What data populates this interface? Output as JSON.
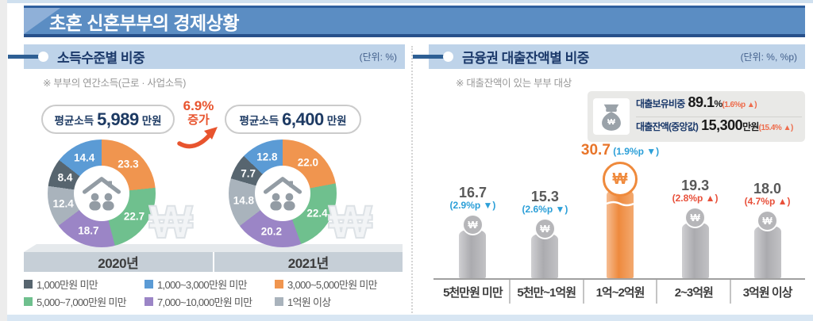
{
  "banner": {
    "title": "초혼 신혼부부의 경제상황"
  },
  "income_panel": {
    "title": "소득수준별 비중",
    "unit": "(단위: %)",
    "note": "※ 부부의  연간소득(근로 · 사업소득)",
    "increase": {
      "percent": "6.9%",
      "label": "증가"
    },
    "groups": [
      {
        "year": "2020년",
        "avg_prefix": "평균소득",
        "avg_value": "5,989",
        "avg_unit": "만원"
      },
      {
        "year": "2021년",
        "avg_prefix": "평균소득",
        "avg_value": "6,400",
        "avg_unit": "만원"
      }
    ],
    "legend": [
      {
        "label": "1,000만원 미만",
        "color": "#57656f"
      },
      {
        "label": "1,000~3,000만원 미만",
        "color": "#5b9bd5"
      },
      {
        "label": "3,000~5,000만원 미만",
        "color": "#f0954f"
      },
      {
        "label": "5,000~7,000만원 미만",
        "color": "#6fc08e"
      },
      {
        "label": "7,000~10,000만원 미만",
        "color": "#9b85c6"
      },
      {
        "label": "1억원 이상",
        "color": "#a9b3bc"
      }
    ]
  },
  "loan_panel": {
    "title": "금융권 대출잔액별 비중",
    "unit": "(단위: %, %p)",
    "note": "※ 대출잔액이 있는 부부 대상",
    "summary": [
      {
        "label": "대출보유비중",
        "value": "89.1",
        "value_unit": "%",
        "change": "(1.6%p ▲)"
      },
      {
        "label": "대출잔액(중앙값)",
        "value": "15,300",
        "value_unit": "만원",
        "change": "(15.4% ▲)"
      }
    ]
  },
  "chart_data": [
    {
      "type": "pie",
      "title": "소득수준별 비중 2020년",
      "unit": "%",
      "segments": [
        {
          "label": "3,000~5,000만원 미만",
          "value": 23.3,
          "color": "#f0954f"
        },
        {
          "label": "5,000~7,000만원 미만",
          "value": 22.7,
          "color": "#6fc08e"
        },
        {
          "label": "7,000~10,000만원 미만",
          "value": 18.7,
          "color": "#9b85c6"
        },
        {
          "label": "1억원 이상",
          "value": 12.4,
          "color": "#a9b3bc"
        },
        {
          "label": "1,000만원 미만",
          "value": 8.4,
          "color": "#57656f"
        },
        {
          "label": "1,000~3,000만원 미만",
          "value": 14.4,
          "color": "#5b9bd5"
        }
      ]
    },
    {
      "type": "pie",
      "title": "소득수준별 비중 2021년",
      "unit": "%",
      "segments": [
        {
          "label": "3,000~5,000만원 미만",
          "value": 22.0,
          "color": "#f0954f"
        },
        {
          "label": "5,000~7,000만원 미만",
          "value": 22.4,
          "color": "#6fc08e"
        },
        {
          "label": "7,000~10,000만원 미만",
          "value": 20.2,
          "color": "#9b85c6"
        },
        {
          "label": "1억원 이상",
          "value": 14.8,
          "color": "#a9b3bc"
        },
        {
          "label": "1,000만원 미만",
          "value": 7.7,
          "color": "#57656f"
        },
        {
          "label": "1,000~3,000만원 미만",
          "value": 12.8,
          "color": "#5b9bd5"
        }
      ]
    },
    {
      "type": "bar",
      "title": "금융권 대출잔액별 비중",
      "unit": "%",
      "categories": [
        "5천만원 미만",
        "5천만~1억원",
        "1억~2억원",
        "2~3억원",
        "3억원 이상"
      ],
      "values": [
        16.7,
        15.3,
        30.7,
        19.3,
        18.0
      ],
      "changes": [
        {
          "text": "(2.9%p ▼)",
          "direction": "down"
        },
        {
          "text": "(2.6%p ▼)",
          "direction": "down"
        },
        {
          "text": "(1.9%p ▼)",
          "direction": "down"
        },
        {
          "text": "(2.8%p ▲)",
          "direction": "up"
        },
        {
          "text": "(4.7%p ▲)",
          "direction": "up"
        }
      ],
      "highlight_index": 2,
      "colors": {
        "bar": "#b4b4b7",
        "highlight": "#ef8f46",
        "up": "#e8503a",
        "down": "#2b9fd8"
      }
    }
  ]
}
